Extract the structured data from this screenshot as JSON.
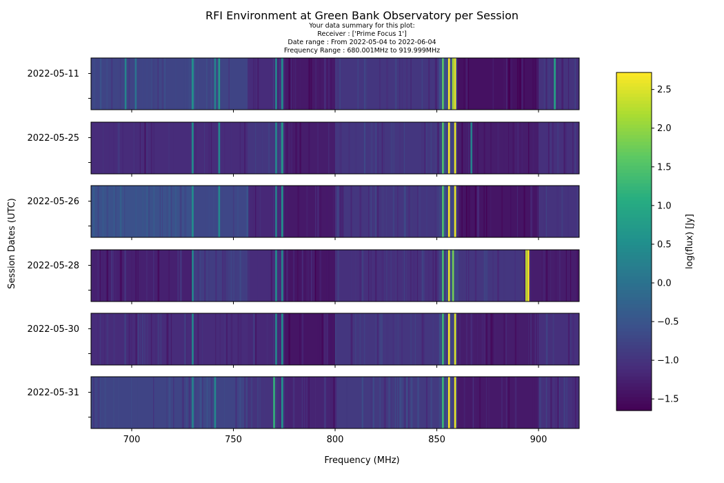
{
  "chart_data": {
    "type": "heatmap",
    "title": "RFI Environment at Green Bank Observatory per Session",
    "subtitle": [
      "Your data summary for this plot:",
      "Receiver : ['Prime Focus 1']",
      "Date range : From 2022-05-04 to 2022-06-04",
      "Frequency Range : 680.001MHz to 919.999MHz"
    ],
    "xlabel": "Frequency (MHz)",
    "ylabel": "Session Dates (UTC)",
    "colorbar_label": "log(flux) [Jy]",
    "colormap": "viridis",
    "xlim": [
      680,
      920
    ],
    "xticks": [
      700,
      750,
      800,
      850,
      900
    ],
    "clim": [
      -1.65,
      2.72
    ],
    "colorbar_ticks": [
      -1.5,
      -1.0,
      -0.5,
      0.0,
      0.5,
      1.0,
      1.5,
      2.0,
      2.5
    ],
    "colorbar_tick_labels": [
      "−1.5",
      "−1.0",
      "−0.5",
      "0.0",
      "0.5",
      "1.0",
      "1.5",
      "2.0",
      "2.5"
    ],
    "background_level": -0.9,
    "sessions": [
      {
        "date": "2022-05-11",
        "segments": [
          {
            "from": 680,
            "to": 757,
            "value": -0.75
          },
          {
            "from": 757,
            "to": 775,
            "value": -1.1
          },
          {
            "from": 775,
            "to": 800,
            "value": -1.35
          },
          {
            "from": 800,
            "to": 851,
            "value": -0.95
          },
          {
            "from": 851,
            "to": 860,
            "value": -0.6
          },
          {
            "from": 860,
            "to": 900,
            "value": -1.45
          },
          {
            "from": 900,
            "to": 920,
            "value": -1.0
          }
        ],
        "lines": [
          {
            "f": 697,
            "value": 0.3
          },
          {
            "f": 702,
            "value": 0.0
          },
          {
            "f": 730,
            "value": 0.6
          },
          {
            "f": 741,
            "value": 0.3
          },
          {
            "f": 743,
            "value": 0.7
          },
          {
            "f": 771,
            "value": 0.4
          },
          {
            "f": 774,
            "value": 0.5
          },
          {
            "f": 853,
            "value": 1.6
          },
          {
            "f": 856,
            "value": 2.7
          },
          {
            "f": 858,
            "value": 2.2
          },
          {
            "f": 859,
            "value": 2.6
          },
          {
            "f": 908,
            "value": 0.9
          }
        ]
      },
      {
        "date": "2022-05-25",
        "segments": [
          {
            "from": 680,
            "to": 757,
            "value": -1.1
          },
          {
            "from": 757,
            "to": 775,
            "value": -0.95
          },
          {
            "from": 775,
            "to": 800,
            "value": -1.3
          },
          {
            "from": 800,
            "to": 851,
            "value": -0.95
          },
          {
            "from": 851,
            "to": 860,
            "value": -0.8
          },
          {
            "from": 860,
            "to": 900,
            "value": -1.3
          },
          {
            "from": 900,
            "to": 920,
            "value": -1.05
          }
        ],
        "lines": [
          {
            "f": 730,
            "value": 0.5
          },
          {
            "f": 743,
            "value": 0.4
          },
          {
            "f": 771,
            "value": 0.4
          },
          {
            "f": 774,
            "value": 0.7
          },
          {
            "f": 853,
            "value": 1.5
          },
          {
            "f": 856,
            "value": 2.7
          },
          {
            "f": 859,
            "value": 2.6
          },
          {
            "f": 867,
            "value": 0.3
          }
        ]
      },
      {
        "date": "2022-05-26",
        "segments": [
          {
            "from": 680,
            "to": 730,
            "value": -0.55
          },
          {
            "from": 730,
            "to": 757,
            "value": -0.7
          },
          {
            "from": 757,
            "to": 775,
            "value": -1.15
          },
          {
            "from": 775,
            "to": 800,
            "value": -1.35
          },
          {
            "from": 800,
            "to": 851,
            "value": -0.95
          },
          {
            "from": 851,
            "to": 860,
            "value": -0.75
          },
          {
            "from": 860,
            "to": 900,
            "value": -1.4
          },
          {
            "from": 900,
            "to": 920,
            "value": -1.0
          }
        ],
        "lines": [
          {
            "f": 730,
            "value": 0.5
          },
          {
            "f": 743,
            "value": 0.4
          },
          {
            "f": 771,
            "value": 0.3
          },
          {
            "f": 774,
            "value": 0.6
          },
          {
            "f": 853,
            "value": 1.5
          },
          {
            "f": 856,
            "value": 2.7
          },
          {
            "f": 859,
            "value": 2.6
          }
        ]
      },
      {
        "date": "2022-05-28",
        "segments": [
          {
            "from": 680,
            "to": 730,
            "value": -1.25
          },
          {
            "from": 730,
            "to": 757,
            "value": -0.85
          },
          {
            "from": 757,
            "to": 775,
            "value": -1.1
          },
          {
            "from": 775,
            "to": 800,
            "value": -1.4
          },
          {
            "from": 800,
            "to": 851,
            "value": -1.05
          },
          {
            "from": 851,
            "to": 860,
            "value": -0.75
          },
          {
            "from": 860,
            "to": 893,
            "value": -0.95
          },
          {
            "from": 893,
            "to": 920,
            "value": -1.3
          }
        ],
        "lines": [
          {
            "f": 730,
            "value": 0.4
          },
          {
            "f": 771,
            "value": 0.5
          },
          {
            "f": 774,
            "value": 0.4
          },
          {
            "f": 853,
            "value": 1.4
          },
          {
            "f": 856,
            "value": 2.6
          },
          {
            "f": 858,
            "value": 1.8
          },
          {
            "f": 894,
            "value": 2.3
          },
          {
            "f": 895,
            "value": 2.7
          }
        ]
      },
      {
        "date": "2022-05-30",
        "segments": [
          {
            "from": 680,
            "to": 757,
            "value": -1.1
          },
          {
            "from": 757,
            "to": 775,
            "value": -1.15
          },
          {
            "from": 775,
            "to": 800,
            "value": -1.4
          },
          {
            "from": 800,
            "to": 851,
            "value": -0.95
          },
          {
            "from": 851,
            "to": 860,
            "value": -0.8
          },
          {
            "from": 860,
            "to": 900,
            "value": -1.3
          },
          {
            "from": 900,
            "to": 920,
            "value": -1.05
          }
        ],
        "lines": [
          {
            "f": 730,
            "value": 0.4
          },
          {
            "f": 771,
            "value": 0.4
          },
          {
            "f": 774,
            "value": 0.5
          },
          {
            "f": 853,
            "value": 1.3
          },
          {
            "f": 856,
            "value": 2.7
          },
          {
            "f": 859,
            "value": 2.5
          }
        ]
      },
      {
        "date": "2022-05-31",
        "segments": [
          {
            "from": 680,
            "to": 757,
            "value": -0.75
          },
          {
            "from": 757,
            "to": 775,
            "value": -1.0
          },
          {
            "from": 775,
            "to": 800,
            "value": -1.2
          },
          {
            "from": 800,
            "to": 851,
            "value": -0.9
          },
          {
            "from": 851,
            "to": 860,
            "value": -0.75
          },
          {
            "from": 860,
            "to": 900,
            "value": -1.35
          },
          {
            "from": 900,
            "to": 920,
            "value": -1.05
          }
        ],
        "lines": [
          {
            "f": 730,
            "value": 0.3
          },
          {
            "f": 741,
            "value": 0.4
          },
          {
            "f": 770,
            "value": 1.2
          },
          {
            "f": 774,
            "value": 0.6
          },
          {
            "f": 853,
            "value": 1.3
          },
          {
            "f": 856,
            "value": 2.7
          },
          {
            "f": 859,
            "value": 2.6
          }
        ]
      }
    ]
  }
}
